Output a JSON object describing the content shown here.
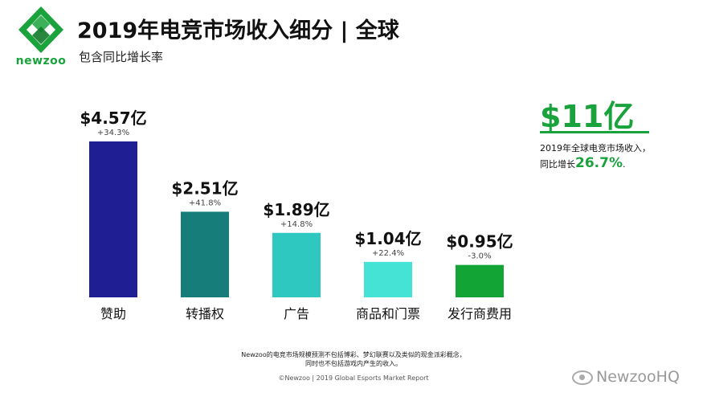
{
  "brand": {
    "name": "newzoo",
    "color": "#1aa33c"
  },
  "header": {
    "title": "2019年电竞市场收入细分 | 全球",
    "subtitle": "包含同比增长率"
  },
  "chart_data": {
    "type": "bar",
    "title": "2019年电竞市场收入细分 | 全球",
    "subtitle": "包含同比增长率",
    "categories": [
      "赞助",
      "转播权",
      "广告",
      "商品和门票",
      "发行商费用"
    ],
    "values": [
      4.57,
      2.51,
      1.89,
      1.04,
      0.95
    ],
    "value_labels": [
      "$4.57亿",
      "$2.51亿",
      "$1.89亿",
      "$1.04亿",
      "$0.95亿"
    ],
    "growth_labels": [
      "+34.3%",
      "+41.8%",
      "+14.8%",
      "+22.4%",
      "-3.0%"
    ],
    "colors": [
      "#1f1f93",
      "#167d7a",
      "#2ec8c0",
      "#44e3d6",
      "#12a536"
    ],
    "ylim": [
      0,
      4.57
    ],
    "grid": false,
    "legend": "none"
  },
  "summary": {
    "total": "$11亿",
    "desc_line1": "2019年全球电竞市场收入，",
    "desc_line2_prefix": "同比增长",
    "growth": "26.7%",
    "desc_line2_suffix": "."
  },
  "footer": {
    "note_line1": "Newzoo的电竞市场规模预测不包括博彩、梦幻联赛以及类似的现金派彩概念，",
    "note_line2": "同时也不包括游戏内产生的收入。",
    "source": "©Newzoo | 2019 Global Esports Market Report"
  },
  "watermark": {
    "text": "NewzooHQ",
    "icon": "weibo-eye-icon"
  }
}
